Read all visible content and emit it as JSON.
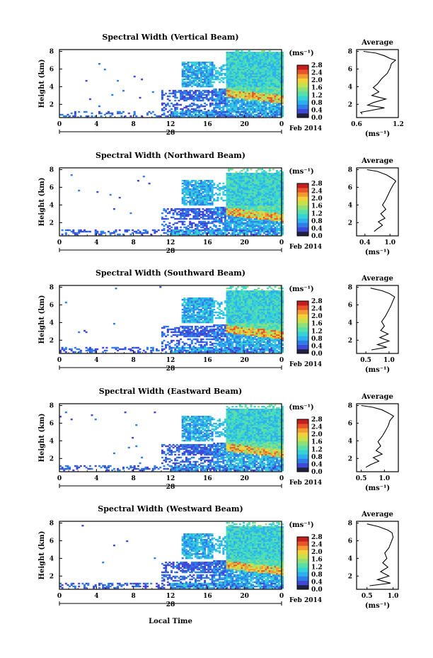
{
  "figure": {
    "x_label": "Local Time",
    "date_label": "Feb 2014",
    "day_label": "28",
    "unit_label": "(ms⁻¹)",
    "avg_title": "Average",
    "x_ticks": [
      "0",
      "4",
      "8",
      "12",
      "16",
      "20",
      "0"
    ],
    "y_ticks": [
      "2",
      "4",
      "6",
      "8"
    ],
    "y_label": "Height (km)",
    "colormap": [
      "#202040",
      "#4048d8",
      "#2f7ee8",
      "#2fb0ee",
      "#36d3d6",
      "#58e0a8",
      "#8ee07a",
      "#c8e04c",
      "#f2d23a",
      "#f49a32",
      "#e8552a",
      "#c41e1e"
    ]
  },
  "chart_data": [
    {
      "type": "heatmap",
      "title": "Spectral Width (Vertical Beam)",
      "xlabel": "",
      "ylabel": "Height (km)",
      "x_range": [
        0,
        24
      ],
      "ylim": [
        0.5,
        8.2
      ],
      "colorbar": {
        "ticks": [
          "0.0",
          "0.4",
          "0.8",
          "1.2",
          "1.6",
          "2.0",
          "2.4",
          "2.8"
        ],
        "range": [
          0.0,
          2.8
        ]
      },
      "average_profile": {
        "title": "Average",
        "xlabel": "(ms⁻¹)",
        "x_ticks": [
          "0.6",
          "1.2"
        ],
        "x_range": [
          0.6,
          1.2
        ],
        "y_range": [
          0.5,
          8.2
        ],
        "points": [
          [
            0.68,
            0.9
          ],
          [
            0.66,
            1.1
          ],
          [
            0.8,
            1.3
          ],
          [
            1.0,
            1.6
          ],
          [
            0.76,
            1.9
          ],
          [
            0.84,
            2.2
          ],
          [
            1.02,
            2.6
          ],
          [
            0.82,
            3.0
          ],
          [
            0.92,
            3.4
          ],
          [
            0.84,
            3.9
          ],
          [
            0.9,
            4.3
          ],
          [
            0.96,
            4.9
          ],
          [
            1.04,
            5.5
          ],
          [
            1.08,
            6.1
          ],
          [
            1.1,
            6.6
          ],
          [
            1.16,
            7.0
          ],
          [
            1.08,
            7.2
          ],
          [
            1.0,
            7.5
          ],
          [
            0.88,
            7.8
          ],
          [
            0.7,
            8.0
          ]
        ]
      }
    },
    {
      "type": "heatmap",
      "title": "Spectral Width (Northward Beam)",
      "xlabel": "",
      "ylabel": "Height (km)",
      "x_range": [
        0,
        24
      ],
      "ylim": [
        0.5,
        8.2
      ],
      "colorbar": {
        "ticks": [
          "0.0",
          "0.4",
          "0.8",
          "1.2",
          "1.6",
          "2.0",
          "2.4",
          "2.8"
        ],
        "range": [
          0.0,
          2.8
        ]
      },
      "average_profile": {
        "title": "Average",
        "xlabel": "(ms⁻¹)",
        "x_ticks": [
          "0.4",
          "1.0"
        ],
        "x_range": [
          0.2,
          1.2
        ],
        "y_range": [
          0.5,
          8.2
        ],
        "points": [
          [
            0.62,
            1.0
          ],
          [
            0.7,
            1.3
          ],
          [
            0.82,
            1.7
          ],
          [
            0.72,
            2.1
          ],
          [
            0.88,
            2.5
          ],
          [
            0.78,
            3.0
          ],
          [
            0.9,
            3.5
          ],
          [
            0.82,
            4.0
          ],
          [
            0.9,
            4.6
          ],
          [
            0.96,
            5.2
          ],
          [
            1.02,
            5.8
          ],
          [
            1.08,
            6.3
          ],
          [
            1.14,
            6.7
          ],
          [
            1.06,
            7.0
          ],
          [
            0.92,
            7.4
          ],
          [
            0.7,
            7.8
          ],
          [
            0.45,
            8.0
          ]
        ]
      }
    },
    {
      "type": "heatmap",
      "title": "Spectral Width (Southward Beam)",
      "xlabel": "",
      "ylabel": "Height (km)",
      "x_range": [
        0,
        24
      ],
      "ylim": [
        0.5,
        8.2
      ],
      "colorbar": {
        "ticks": [
          "0.0",
          "0.4",
          "0.8",
          "1.2",
          "1.6",
          "2.0",
          "2.4",
          "2.8"
        ],
        "range": [
          0.0,
          2.8
        ]
      },
      "average_profile": {
        "title": "Average",
        "xlabel": "(ms⁻¹)",
        "x_ticks": [
          "0.5",
          "1.0"
        ],
        "x_range": [
          0.3,
          1.2
        ],
        "y_range": [
          0.5,
          8.2
        ],
        "points": [
          [
            0.62,
            0.9
          ],
          [
            0.95,
            1.2
          ],
          [
            0.75,
            1.5
          ],
          [
            1.0,
            1.9
          ],
          [
            0.8,
            2.3
          ],
          [
            0.98,
            2.7
          ],
          [
            0.82,
            3.1
          ],
          [
            0.9,
            3.6
          ],
          [
            0.84,
            4.1
          ],
          [
            0.92,
            4.7
          ],
          [
            0.98,
            5.3
          ],
          [
            1.04,
            5.9
          ],
          [
            1.08,
            6.4
          ],
          [
            1.12,
            6.9
          ],
          [
            1.0,
            7.3
          ],
          [
            0.85,
            7.6
          ],
          [
            0.6,
            7.9
          ]
        ]
      }
    },
    {
      "type": "heatmap",
      "title": "Spectral Width (Eastward Beam)",
      "xlabel": "",
      "ylabel": "Height (km)",
      "x_range": [
        0,
        24
      ],
      "ylim": [
        0.5,
        8.2
      ],
      "colorbar": {
        "ticks": [
          "0.0",
          "0.4",
          "0.8",
          "1.2",
          "1.6",
          "2.0",
          "2.4",
          "2.8"
        ],
        "range": [
          0.0,
          2.8
        ]
      },
      "average_profile": {
        "title": "Average",
        "xlabel": "(ms⁻¹)",
        "x_ticks": [
          "0.5",
          "1.0"
        ],
        "x_range": [
          0.4,
          1.3
        ],
        "y_range": [
          0.5,
          8.2
        ],
        "points": [
          [
            0.6,
            1.0
          ],
          [
            0.7,
            1.3
          ],
          [
            0.88,
            1.7
          ],
          [
            0.76,
            2.1
          ],
          [
            0.95,
            2.5
          ],
          [
            0.82,
            2.9
          ],
          [
            0.92,
            3.4
          ],
          [
            0.86,
            3.9
          ],
          [
            0.95,
            4.5
          ],
          [
            1.02,
            5.1
          ],
          [
            1.08,
            5.7
          ],
          [
            1.12,
            6.3
          ],
          [
            1.2,
            6.8
          ],
          [
            1.1,
            7.1
          ],
          [
            0.95,
            7.5
          ],
          [
            0.75,
            7.8
          ],
          [
            0.5,
            8.0
          ]
        ]
      }
    },
    {
      "type": "heatmap",
      "title": "Spectral Width (Westward Beam)",
      "xlabel": "Local Time",
      "ylabel": "Height (km)",
      "x_range": [
        0,
        24
      ],
      "ylim": [
        0.5,
        8.2
      ],
      "colorbar": {
        "ticks": [
          "0.0",
          "0.4",
          "0.8",
          "1.2",
          "1.6",
          "2.0",
          "2.4",
          "2.8"
        ],
        "range": [
          0.0,
          2.8
        ]
      },
      "average_profile": {
        "title": "Average",
        "xlabel": "(ms⁻¹)",
        "x_ticks": [
          "0.5",
          "1.0"
        ],
        "x_range": [
          0.3,
          1.1
        ],
        "y_range": [
          0.5,
          8.2
        ],
        "points": [
          [
            0.55,
            0.9
          ],
          [
            0.95,
            1.2
          ],
          [
            0.7,
            1.6
          ],
          [
            0.92,
            2.0
          ],
          [
            0.76,
            2.5
          ],
          [
            0.9,
            3.0
          ],
          [
            0.8,
            3.5
          ],
          [
            0.88,
            4.0
          ],
          [
            0.84,
            4.6
          ],
          [
            0.92,
            5.2
          ],
          [
            0.96,
            5.8
          ],
          [
            1.0,
            6.4
          ],
          [
            0.98,
            6.9
          ],
          [
            0.9,
            7.2
          ],
          [
            0.72,
            7.6
          ],
          [
            0.5,
            7.9
          ]
        ]
      }
    }
  ]
}
